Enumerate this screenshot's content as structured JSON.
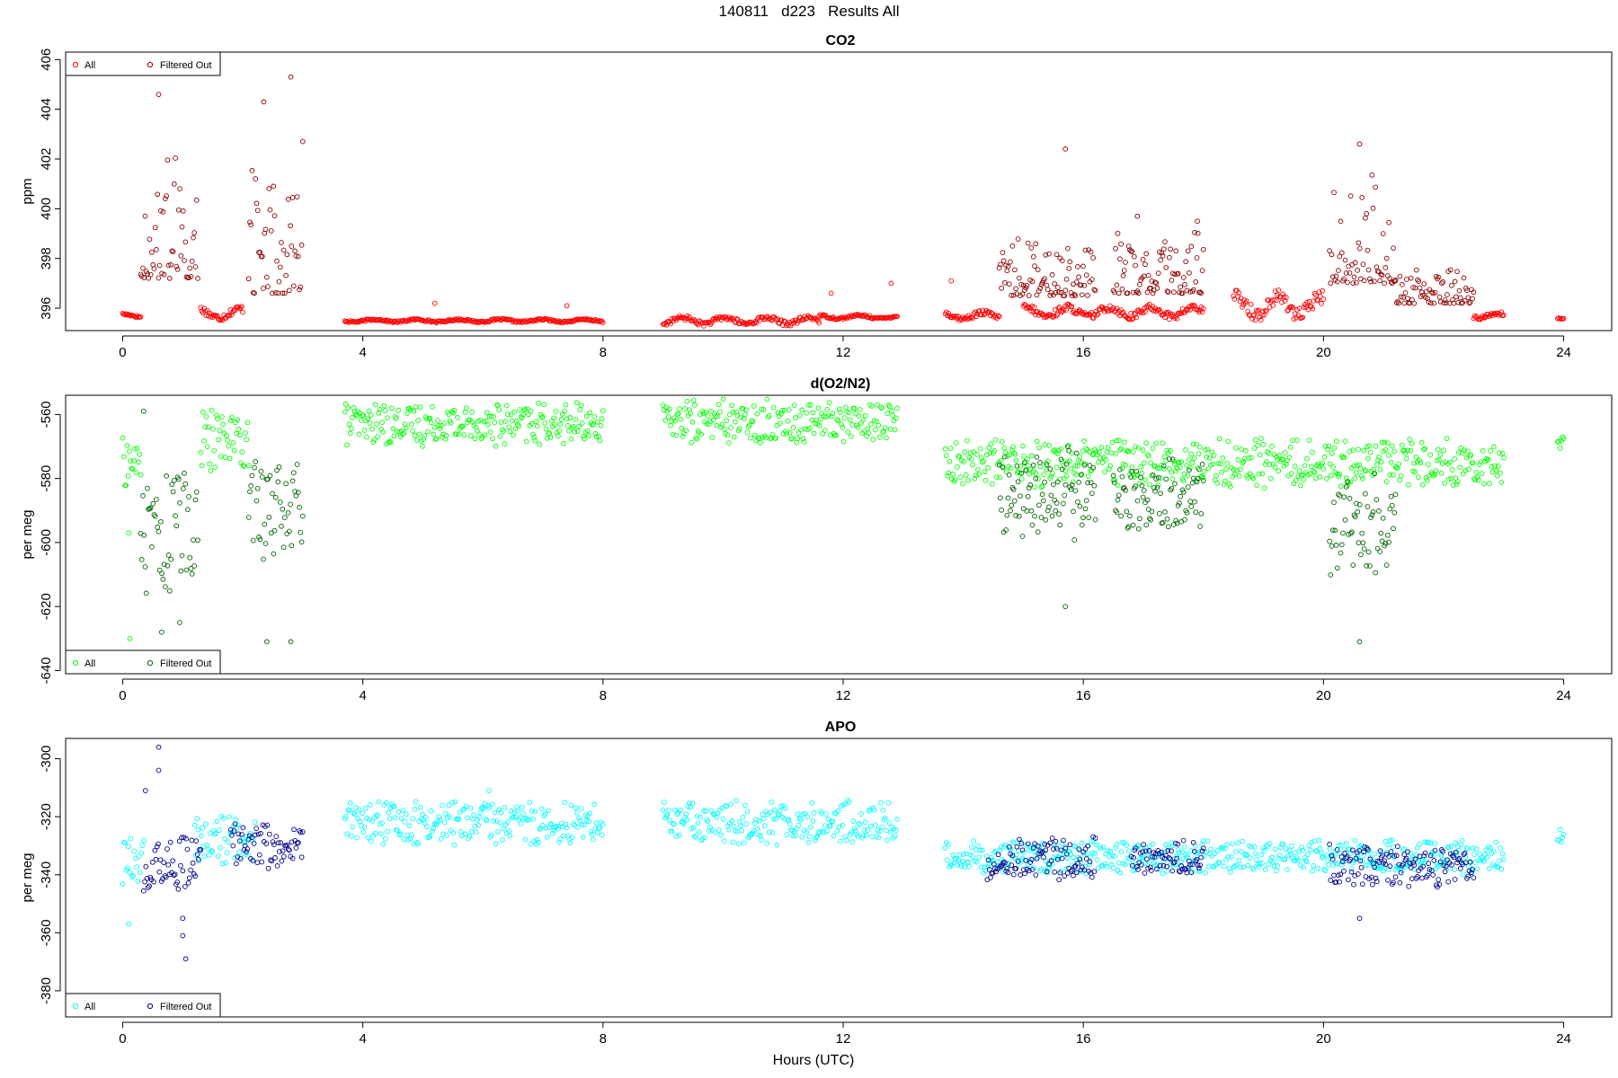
{
  "figure_title": "140811   d223   Results All",
  "xlabel": "Hours (UTC)",
  "panels": [
    {
      "title": "CO2",
      "ylabel": "ppm",
      "all_color": "#ff0000",
      "filtered_color": "#8b0000",
      "legend_position": "top-left",
      "legend_all": "All",
      "legend_filtered": "Filtered Out",
      "xticks": [
        "0",
        "4",
        "8",
        "12",
        "16",
        "20",
        "24"
      ],
      "yticks": [
        "396",
        "398",
        "400",
        "402",
        "404",
        "406"
      ]
    },
    {
      "title": "d(O2/N2)",
      "ylabel": "per meg",
      "all_color": "#00ff00",
      "filtered_color": "#006400",
      "legend_position": "bottom-left",
      "legend_all": "All",
      "legend_filtered": "Filtered Out",
      "xticks": [
        "0",
        "4",
        "8",
        "12",
        "16",
        "20",
        "24"
      ],
      "yticks": [
        "-640",
        "-620",
        "-600",
        "-580",
        "-560"
      ]
    },
    {
      "title": "APO",
      "ylabel": "per meg",
      "all_color": "#00ffff",
      "filtered_color": "#00008b",
      "legend_position": "bottom-left",
      "legend_all": "All",
      "legend_filtered": "Filtered Out",
      "xticks": [
        "0",
        "4",
        "8",
        "12",
        "16",
        "20",
        "24"
      ],
      "yticks": [
        "-380",
        "-360",
        "-340",
        "-320",
        "-300"
      ]
    }
  ],
  "chart_data": [
    {
      "type": "scatter",
      "title": "CO2",
      "xlabel": "Hours (UTC)",
      "ylabel": "ppm",
      "xlim": [
        -0.95,
        24.8
      ],
      "ylim": [
        395.1,
        406.3
      ],
      "grid": false,
      "legend": "top-left",
      "series": [
        {
          "name": "All",
          "color": "#ff0000",
          "segments": [
            {
              "from": 0.0,
              "to": 0.3,
              "base": 395.7,
              "amp": 0.1
            },
            {
              "from": 1.3,
              "to": 2.0,
              "base": 395.8,
              "amp": 0.3
            },
            {
              "from": 3.7,
              "to": 8.0,
              "base": 395.5,
              "amp": 0.08
            },
            {
              "from": 9.0,
              "to": 11.6,
              "base": 395.5,
              "amp": 0.2
            },
            {
              "from": 11.6,
              "to": 12.9,
              "base": 395.65,
              "amp": 0.1
            },
            {
              "from": 13.7,
              "to": 14.6,
              "base": 395.7,
              "amp": 0.2
            },
            {
              "from": 15.0,
              "to": 18.0,
              "base": 395.85,
              "amp": 0.3
            },
            {
              "from": 18.5,
              "to": 20.0,
              "base": 396.1,
              "amp": 0.6
            },
            {
              "from": 22.5,
              "to": 23.0,
              "base": 395.7,
              "amp": 0.15
            },
            {
              "from": 23.9,
              "to": 24.0,
              "base": 395.6,
              "amp": 0.05
            }
          ],
          "spikes": [
            {
              "x": 5.2,
              "y": 396.2
            },
            {
              "x": 7.4,
              "y": 396.1
            },
            {
              "x": 11.8,
              "y": 396.6
            },
            {
              "x": 12.8,
              "y": 397.0
            },
            {
              "x": 13.8,
              "y": 397.1
            }
          ]
        },
        {
          "name": "Filtered Out",
          "color": "#8b0000",
          "segments": [
            {
              "from": 0.3,
              "to": 1.25,
              "base": 397.2,
              "amp": 5.2
            },
            {
              "from": 2.1,
              "to": 3.0,
              "base": 396.6,
              "amp": 6.4
            },
            {
              "from": 14.6,
              "to": 16.2,
              "base": 396.5,
              "amp": 2.8
            },
            {
              "from": 16.5,
              "to": 18.0,
              "base": 396.6,
              "amp": 2.6
            },
            {
              "from": 20.1,
              "to": 21.2,
              "base": 397.0,
              "amp": 5.0
            },
            {
              "from": 21.2,
              "to": 22.5,
              "base": 396.2,
              "amp": 1.5
            }
          ],
          "spikes": [
            {
              "x": 0.6,
              "y": 404.6
            },
            {
              "x": 2.35,
              "y": 404.3
            },
            {
              "x": 2.8,
              "y": 405.3
            },
            {
              "x": 15.7,
              "y": 402.4
            },
            {
              "x": 20.6,
              "y": 402.6
            },
            {
              "x": 16.9,
              "y": 399.7
            },
            {
              "x": 17.9,
              "y": 399.5
            }
          ]
        }
      ]
    },
    {
      "type": "scatter",
      "title": "d(O2/N2)",
      "xlabel": "Hours (UTC)",
      "ylabel": "per meg",
      "xlim": [
        -0.95,
        24.8
      ],
      "ylim": [
        -641,
        -554
      ],
      "grid": false,
      "legend": "bottom-left",
      "series": [
        {
          "name": "All",
          "color": "#00ff00",
          "segments": [
            {
              "from": 0.0,
              "to": 0.3,
              "base": -575,
              "amp": 8
            },
            {
              "from": 1.3,
              "to": 2.1,
              "base": -568,
              "amp": 10
            },
            {
              "from": 3.7,
              "to": 8.0,
              "base": -563,
              "amp": 7
            },
            {
              "from": 9.0,
              "to": 12.9,
              "base": -562,
              "amp": 7
            },
            {
              "from": 13.7,
              "to": 23.0,
              "base": -575,
              "amp": 8
            },
            {
              "from": 23.9,
              "to": 24.0,
              "base": -569,
              "amp": 3
            }
          ],
          "spikes": [
            {
              "x": 0.1,
              "y": -597
            },
            {
              "x": 0.12,
              "y": -630
            }
          ]
        },
        {
          "name": "Filtered Out",
          "color": "#006400",
          "segments": [
            {
              "from": 0.3,
              "to": 1.25,
              "base": -596,
              "amp": 22
            },
            {
              "from": 2.1,
              "to": 3.0,
              "base": -590,
              "amp": 22
            },
            {
              "from": 14.6,
              "to": 16.2,
              "base": -585,
              "amp": 15
            },
            {
              "from": 16.5,
              "to": 18.0,
              "base": -585,
              "amp": 12
            },
            {
              "from": 20.1,
              "to": 21.2,
              "base": -595,
              "amp": 18
            }
          ],
          "spikes": [
            {
              "x": 0.35,
              "y": -559
            },
            {
              "x": 0.65,
              "y": -628
            },
            {
              "x": 0.95,
              "y": -625
            },
            {
              "x": 2.4,
              "y": -631
            },
            {
              "x": 2.8,
              "y": -631
            },
            {
              "x": 15.7,
              "y": -620
            },
            {
              "x": 20.6,
              "y": -631
            }
          ]
        }
      ]
    },
    {
      "type": "scatter",
      "title": "APO",
      "xlabel": "Hours (UTC)",
      "ylabel": "per meg",
      "xlim": [
        -0.95,
        24.8
      ],
      "ylim": [
        -389,
        -293
      ],
      "grid": false,
      "legend": "bottom-left",
      "series": [
        {
          "name": "All",
          "color": "#00ffff",
          "segments": [
            {
              "from": 0.0,
              "to": 0.35,
              "base": -335,
              "amp": 12
            },
            {
              "from": 1.2,
              "to": 2.2,
              "base": -328,
              "amp": 9
            },
            {
              "from": 3.7,
              "to": 8.0,
              "base": -322,
              "amp": 8
            },
            {
              "from": 9.0,
              "to": 12.9,
              "base": -322,
              "amp": 8
            },
            {
              "from": 13.7,
              "to": 23.0,
              "base": -334,
              "amp": 6
            },
            {
              "from": 23.9,
              "to": 24.0,
              "base": -328,
              "amp": 4
            }
          ],
          "spikes": [
            {
              "x": 0.1,
              "y": -357
            },
            {
              "x": 6.1,
              "y": -311
            }
          ]
        },
        {
          "name": "Filtered Out",
          "color": "#00008b",
          "segments": [
            {
              "from": 0.35,
              "to": 1.3,
              "base": -336,
              "amp": 10
            },
            {
              "from": 1.8,
              "to": 3.0,
              "base": -330,
              "amp": 8
            },
            {
              "from": 14.4,
              "to": 16.2,
              "base": -334,
              "amp": 8
            },
            {
              "from": 16.8,
              "to": 18.0,
              "base": -334,
              "amp": 6
            },
            {
              "from": 20.1,
              "to": 22.5,
              "base": -337,
              "amp": 8
            }
          ],
          "spikes": [
            {
              "x": 0.6,
              "y": -296
            },
            {
              "x": 0.6,
              "y": -304
            },
            {
              "x": 0.38,
              "y": -311
            },
            {
              "x": 1.05,
              "y": -369
            },
            {
              "x": 1.0,
              "y": -361
            },
            {
              "x": 1.0,
              "y": -355
            },
            {
              "x": 20.6,
              "y": -355
            }
          ]
        }
      ]
    }
  ]
}
